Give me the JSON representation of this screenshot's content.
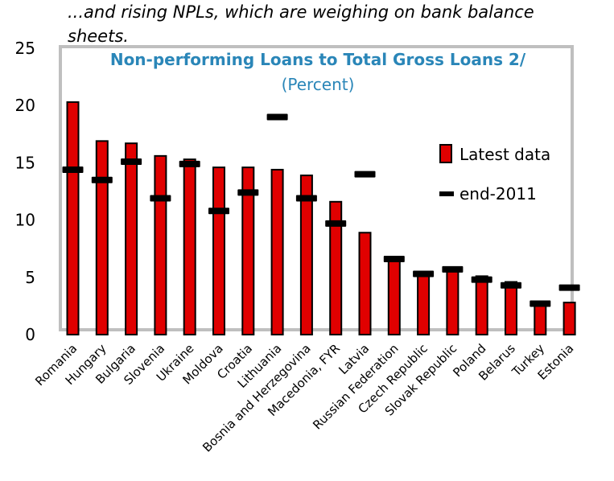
{
  "caption": "...and rising NPLs, which are weighing on bank balance sheets.",
  "chart_data": {
    "type": "bar",
    "title": "Non-performing Loans to Total Gross Loans 2/",
    "subtitle": "(Percent)",
    "ylim": [
      0,
      25
    ],
    "yticks": [
      0,
      5,
      10,
      15,
      20,
      25
    ],
    "categories": [
      "Romania",
      "Hungary",
      "Bulgaria",
      "Slovenia",
      "Ukraine",
      "Moldova",
      "Croatia",
      "Lithuania",
      "Bosnia and Herzegovina",
      "Macedonia, FYR",
      "Latvia",
      "Russian Federation",
      "Czech Republic",
      "Slovak Republic",
      "Poland",
      "Belarus",
      "Turkey",
      "Estonia"
    ],
    "series": [
      {
        "name": "Latest data",
        "kind": "bar",
        "color": "#e00000",
        "values": [
          20.3,
          16.9,
          16.7,
          15.6,
          15.3,
          14.6,
          14.6,
          14.4,
          13.9,
          11.6,
          8.9,
          6.8,
          5.5,
          5.8,
          5.1,
          4.6,
          2.8,
          2.8
        ]
      },
      {
        "name": "end-2011",
        "kind": "marker",
        "color": "#000000",
        "values": [
          14.4,
          13.5,
          15.1,
          11.9,
          14.9,
          10.8,
          12.4,
          null,
          11.9,
          9.7,
          null,
          6.6,
          5.3,
          5.7,
          4.8,
          4.3,
          2.7,
          4.1
        ]
      }
    ],
    "offchart_markers": [
      {
        "category": "Lithuania",
        "value": 19.0
      },
      {
        "category": "Latvia",
        "value": 14.0
      }
    ],
    "legend_position": "right",
    "grid": false
  }
}
